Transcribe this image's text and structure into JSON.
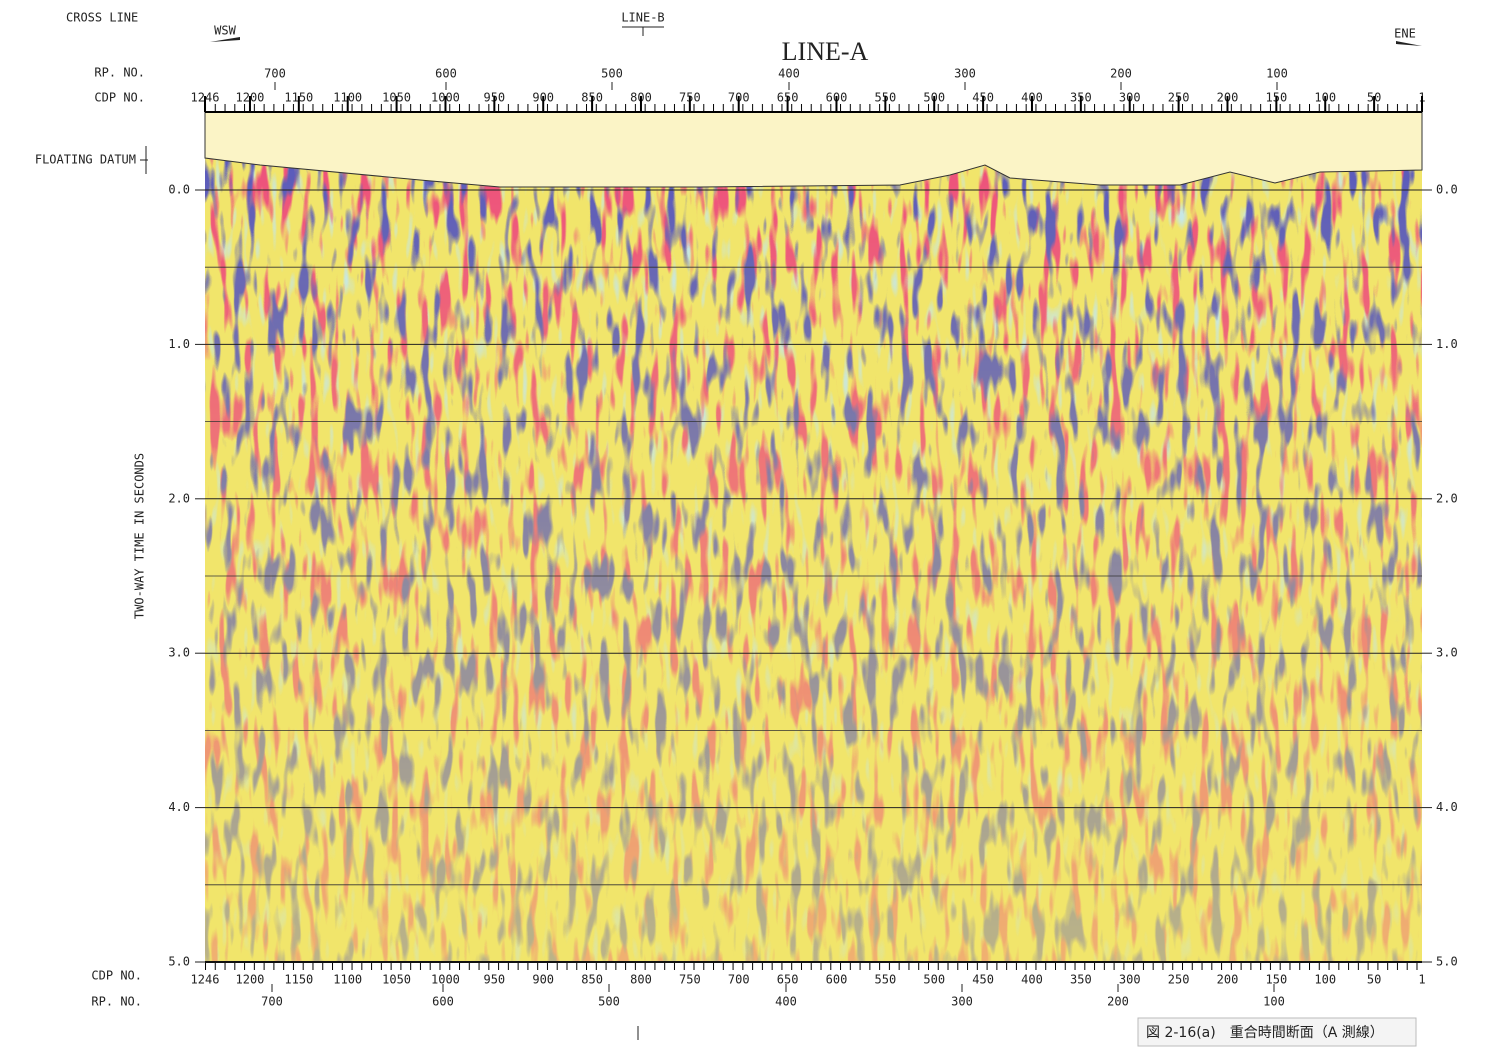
{
  "header": {
    "cross_line": "CROSS LINE",
    "line_b": "LINE-B",
    "wsw": "WSW",
    "ene": "ENE",
    "title": "LINE-A"
  },
  "axes": {
    "rp_label": "RP. NO.",
    "cdp_label": "CDP NO.",
    "floating_datum": "FLOATING DATUM",
    "time_label": "TWO-WAY TIME IN SECONDS",
    "cdp_ticks": [
      1246,
      1200,
      1150,
      1100,
      1050,
      1000,
      950,
      900,
      850,
      800,
      750,
      700,
      650,
      600,
      550,
      500,
      450,
      400,
      350,
      300,
      250,
      200,
      150,
      100,
      50,
      1
    ],
    "rp_ticks": [
      700,
      600,
      500,
      400,
      300,
      200,
      100
    ],
    "time_ticks": [
      {
        "value": 0,
        "label": "0.0"
      },
      {
        "value": 1,
        "label": "1.0"
      },
      {
        "value": 2,
        "label": "2.0"
      },
      {
        "value": 3,
        "label": "3.0"
      },
      {
        "value": 4,
        "label": "4.0"
      },
      {
        "value": 5,
        "label": "5.0"
      }
    ]
  },
  "caption": "図 2-16(a)　重合時間断面（A 測線）"
}
